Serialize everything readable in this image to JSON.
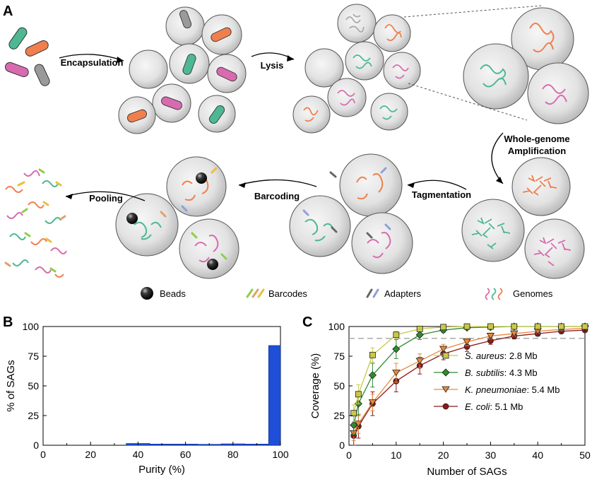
{
  "panelA": {
    "letter": "A",
    "steps": {
      "encapsulation": "Encapsulation",
      "lysis": "Lysis",
      "wga_line1": "Whole-genome",
      "wga_line2": "Amplification",
      "tagmentation": "Tagmentation",
      "barcoding": "Barcoding",
      "pooling": "Pooling"
    },
    "legend": {
      "beads": "Beads",
      "barcodes": "Barcodes",
      "adapters": "Adapters",
      "genomes": "Genomes"
    },
    "colors": {
      "orange": "#f07f4e",
      "green": "#4db892",
      "pink": "#d86bb0",
      "grey": "#9a9a9a"
    }
  },
  "panelB": {
    "letter": "B",
    "chart_data": {
      "type": "bar",
      "xlabel": "Purity (%)",
      "ylabel": "% of SAGs",
      "xlim": [
        0,
        100
      ],
      "ylim": [
        0,
        100
      ],
      "xticks": [
        "0",
        "20",
        "40",
        "60",
        "80",
        "100"
      ],
      "yticks": [
        "0",
        "25",
        "50",
        "75",
        "100"
      ],
      "bar_color": "#1f4fd8",
      "bins": [
        {
          "from": 35,
          "to": 45,
          "value": 1.5
        },
        {
          "from": 45,
          "to": 55,
          "value": 1.0
        },
        {
          "from": 55,
          "to": 65,
          "value": 1.0
        },
        {
          "from": 65,
          "to": 75,
          "value": 0.8
        },
        {
          "from": 75,
          "to": 85,
          "value": 1.2
        },
        {
          "from": 85,
          "to": 95,
          "value": 1.0
        },
        {
          "from": 95,
          "to": 100,
          "value": 84
        }
      ]
    }
  },
  "panelC": {
    "letter": "C",
    "chart_data": {
      "type": "line",
      "xlabel": "Number of SAGs",
      "ylabel": "Coverage (%)",
      "xlim": [
        0,
        50
      ],
      "ylim": [
        0,
        100
      ],
      "xticks": [
        "0",
        "10",
        "20",
        "30",
        "40",
        "50"
      ],
      "yticks": [
        "0",
        "25",
        "50",
        "75",
        "100"
      ],
      "threshold": 90,
      "series": [
        {
          "name": "S. aureus",
          "size": ": 2.8 Mb",
          "color": "#c8c84a",
          "marker": "square",
          "x": [
            1,
            2,
            5,
            10,
            15,
            20,
            25,
            30,
            35,
            40,
            45,
            50
          ],
          "y": [
            27,
            43,
            76,
            93,
            98,
            99.5,
            100,
            100,
            100,
            100,
            100,
            100
          ],
          "err": [
            7,
            8,
            6,
            3,
            1.5,
            0.5,
            0,
            0,
            0,
            0,
            0,
            0
          ]
        },
        {
          "name": "B. subtilis",
          "size": ": 4.3 Mb",
          "color": "#2e8b2e",
          "marker": "diamond",
          "x": [
            1,
            2,
            5,
            10,
            15,
            20,
            25,
            30,
            35,
            40,
            45,
            50
          ],
          "y": [
            17,
            35,
            59,
            81,
            93,
            97,
            99,
            99.5,
            100,
            100,
            100,
            100
          ],
          "err": [
            8,
            10,
            10,
            8,
            4,
            2,
            1,
            0.5,
            0,
            0,
            0,
            0
          ]
        },
        {
          "name": "K. pneumoniae",
          "size": ": 5.4 Mb",
          "color": "#e8893a",
          "marker": "triangle",
          "x": [
            1,
            2,
            5,
            10,
            15,
            20,
            25,
            30,
            35,
            40,
            45,
            50
          ],
          "y": [
            10,
            18,
            36,
            61,
            71,
            81,
            87,
            92,
            94,
            96,
            97.5,
            98.5
          ],
          "err": [
            6,
            8,
            7,
            8,
            6,
            4,
            3,
            2.5,
            2,
            1.5,
            1,
            1
          ]
        },
        {
          "name": "E. coli",
          "size": ": 5.1 Mb",
          "color": "#8b1a1a",
          "marker": "circle",
          "x": [
            1,
            2,
            5,
            10,
            15,
            20,
            25,
            30,
            35,
            40,
            45,
            50
          ],
          "y": [
            8,
            16,
            35,
            54,
            67,
            77,
            83,
            88,
            92,
            94,
            96,
            97
          ],
          "err": [
            8,
            10,
            10,
            9,
            7,
            5,
            4,
            3,
            2.5,
            2,
            1.5,
            1
          ]
        }
      ]
    }
  }
}
